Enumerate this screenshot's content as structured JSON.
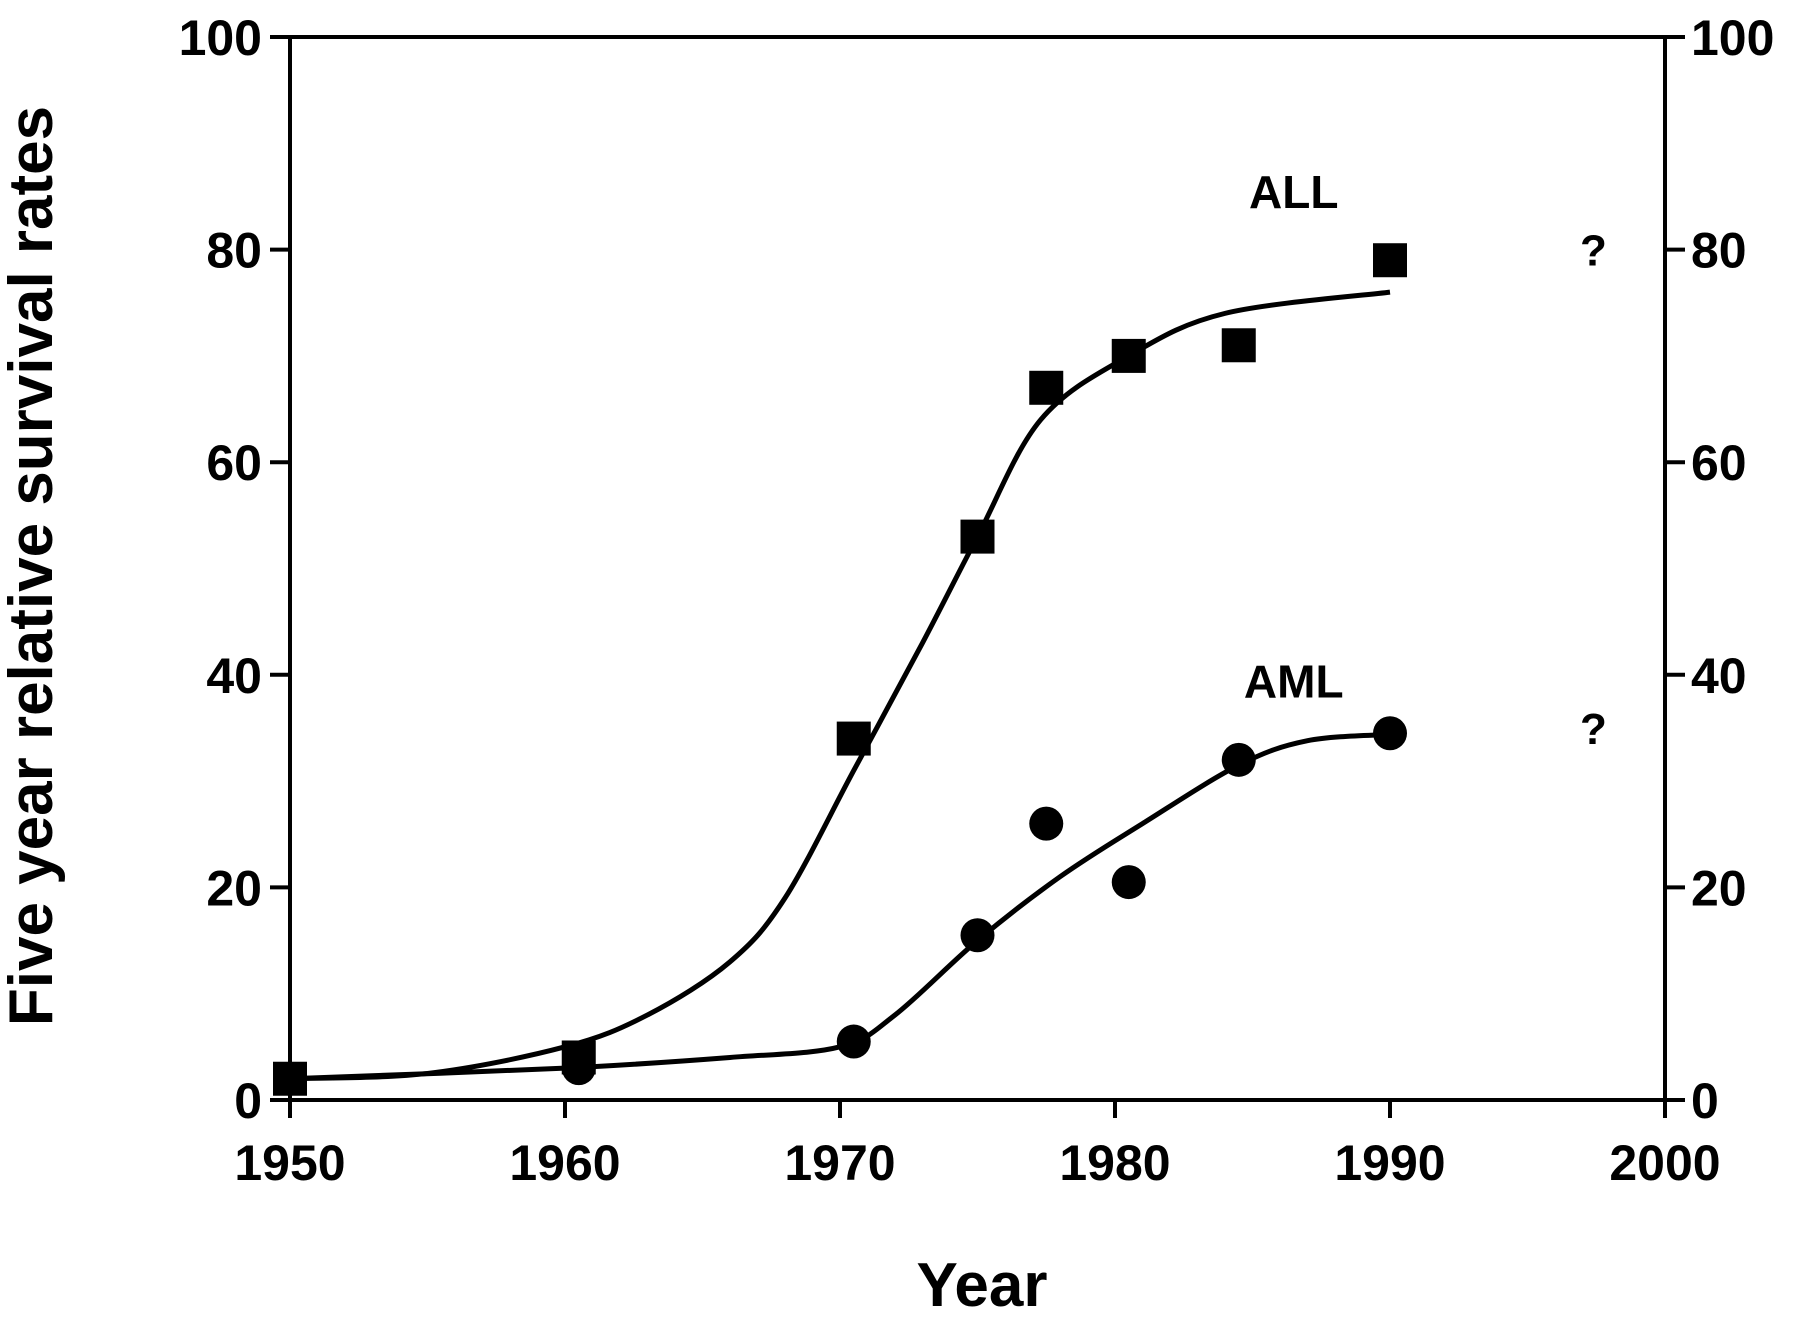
{
  "chart_data": {
    "type": "scatter",
    "title": "",
    "xlabel": "Year",
    "ylabel": "Five year relative survival rates",
    "xlim": [
      1950,
      2000
    ],
    "ylim": [
      0,
      100
    ],
    "x_ticks": [
      "1950",
      "1960",
      "1970",
      "1980",
      "1990",
      "2000"
    ],
    "y_ticks": [
      "0",
      "20",
      "40",
      "60",
      "80",
      "100"
    ],
    "y_ticks_right": [
      "0",
      "20",
      "40",
      "60",
      "80",
      "100"
    ],
    "grid": false,
    "legend": "none",
    "series": [
      {
        "name": "ALL",
        "marker": "square",
        "points": [
          {
            "x": 1950,
            "y": 2
          },
          {
            "x": 1960.5,
            "y": 4
          },
          {
            "x": 1970.5,
            "y": 34
          },
          {
            "x": 1975,
            "y": 53
          },
          {
            "x": 1977.5,
            "y": 67
          },
          {
            "x": 1980.5,
            "y": 70
          },
          {
            "x": 1984.5,
            "y": 71
          },
          {
            "x": 1990,
            "y": 79
          }
        ],
        "fit": [
          {
            "x": 1950,
            "y": 2
          },
          {
            "x": 1955,
            "y": 2.5
          },
          {
            "x": 1960,
            "y": 5
          },
          {
            "x": 1963,
            "y": 8
          },
          {
            "x": 1966,
            "y": 13
          },
          {
            "x": 1968,
            "y": 19
          },
          {
            "x": 1970.5,
            "y": 31
          },
          {
            "x": 1973,
            "y": 43
          },
          {
            "x": 1975,
            "y": 53
          },
          {
            "x": 1977.3,
            "y": 64
          },
          {
            "x": 1980.5,
            "y": 70
          },
          {
            "x": 1984,
            "y": 74
          },
          {
            "x": 1990,
            "y": 76
          }
        ]
      },
      {
        "name": "AML",
        "marker": "circle",
        "points": [
          {
            "x": 1950,
            "y": 2
          },
          {
            "x": 1960.5,
            "y": 3
          },
          {
            "x": 1970.5,
            "y": 5.5
          },
          {
            "x": 1975,
            "y": 15.5
          },
          {
            "x": 1977.5,
            "y": 26
          },
          {
            "x": 1980.5,
            "y": 20.5
          },
          {
            "x": 1984.5,
            "y": 32
          },
          {
            "x": 1990,
            "y": 34.5
          }
        ],
        "fit": [
          {
            "x": 1950,
            "y": 2
          },
          {
            "x": 1960,
            "y": 3
          },
          {
            "x": 1966,
            "y": 4
          },
          {
            "x": 1970,
            "y": 5
          },
          {
            "x": 1972,
            "y": 8
          },
          {
            "x": 1975,
            "y": 15
          },
          {
            "x": 1978,
            "y": 21
          },
          {
            "x": 1981,
            "y": 26
          },
          {
            "x": 1984.5,
            "y": 31.5
          },
          {
            "x": 1987,
            "y": 33.8
          },
          {
            "x": 1990,
            "y": 34.4
          }
        ]
      }
    ],
    "annotations": [
      {
        "text": "?",
        "x": 1997.4,
        "y": 80
      },
      {
        "text": "?",
        "x": 1997.4,
        "y": 35
      }
    ]
  }
}
